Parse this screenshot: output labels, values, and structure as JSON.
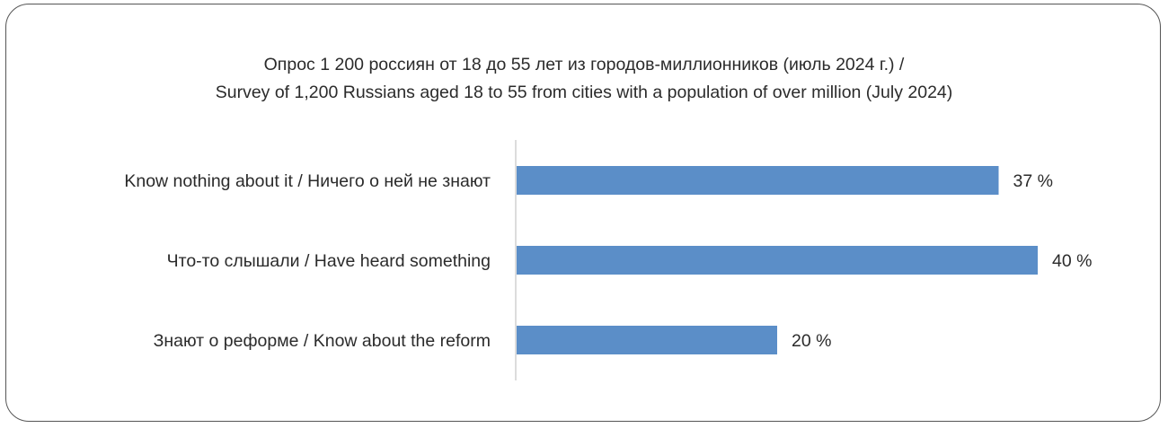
{
  "chart_data": {
    "type": "bar",
    "orientation": "horizontal",
    "title_ru": "Опрос 1 200 россиян от 18 до 55 лет  из городов-миллионников (июль 2024 г.) /",
    "title_en": "Survey of 1,200 Russians aged 18 to 55 from cities with a population of over million (July 2024)",
    "categories": [
      "Know nothing about it / Ничего о ней не знают",
      "Что-то слышали / Have heard something",
      "Знают о реформе / Know about the reform"
    ],
    "values": [
      37,
      40,
      20
    ],
    "value_labels": [
      "37 %",
      "40 %",
      "20 %"
    ],
    "unit": "%",
    "bar_color": "#5b8ec8",
    "xlim": [
      0,
      44
    ],
    "grid": false,
    "legend": "none"
  }
}
